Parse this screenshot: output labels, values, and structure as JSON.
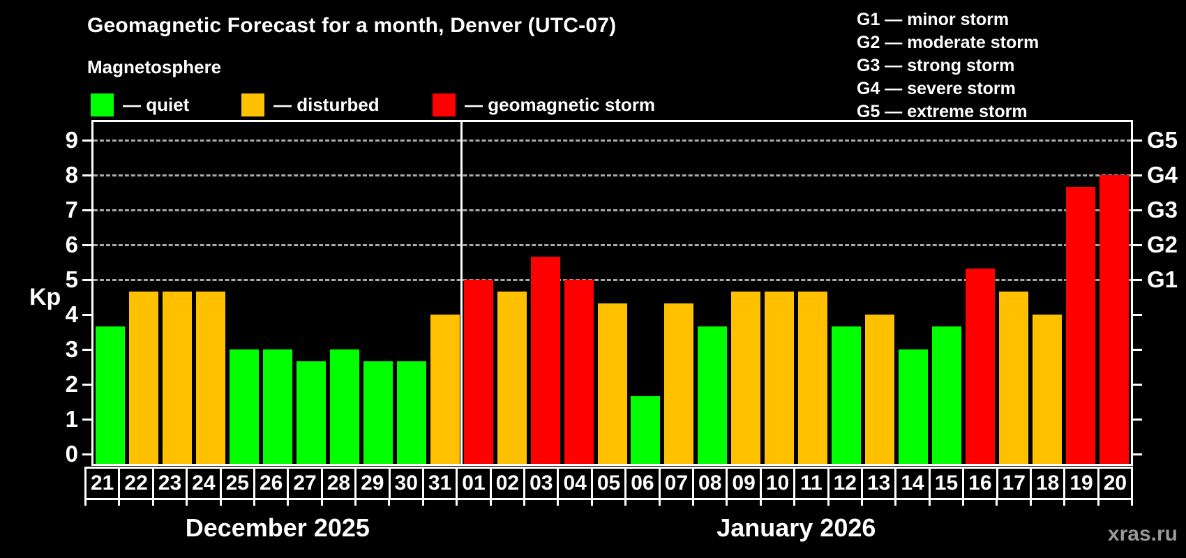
{
  "header": {
    "title": "Geomagnetic Forecast for a month, Denver (UTC-07)",
    "subtitle": "Magnetosphere",
    "watermark": "xras.ru"
  },
  "legend": {
    "items": [
      {
        "key": "quiet",
        "label": "— quiet",
        "color": "#00ff00"
      },
      {
        "key": "disturbed",
        "label": "— disturbed",
        "color": "#ffc000"
      },
      {
        "key": "storm",
        "label": "— geomagnetic storm",
        "color": "#ff0000"
      }
    ]
  },
  "g_legend": {
    "items": [
      {
        "label": "G1 — minor storm"
      },
      {
        "label": "G2 — moderate storm"
      },
      {
        "label": "G3 — strong storm"
      },
      {
        "label": "G4 — severe storm"
      },
      {
        "label": "G5 — extreme storm"
      }
    ]
  },
  "chart_data": {
    "type": "bar",
    "title": "Geomagnetic Forecast for a month, Denver (UTC-07)",
    "ylabel": "Kp",
    "ylim": [
      0,
      9
    ],
    "yticks": [
      "0",
      "1",
      "2",
      "3",
      "4",
      "5",
      "6",
      "7",
      "8",
      "9"
    ],
    "gridlines_at": [
      5,
      6,
      7,
      8,
      9
    ],
    "grid": "dashed horizontal at Kp 5-9 only",
    "legend_position": "top",
    "right_axis_labels": [
      {
        "kp": 5,
        "label": "G1"
      },
      {
        "kp": 6,
        "label": "G2"
      },
      {
        "kp": 7,
        "label": "G3"
      },
      {
        "kp": 8,
        "label": "G4"
      },
      {
        "kp": 9,
        "label": "G5"
      }
    ],
    "months": [
      {
        "label": "December 2025",
        "days": 11
      },
      {
        "label": "January 2026",
        "days": 20
      }
    ],
    "categories": [
      "21",
      "22",
      "23",
      "24",
      "25",
      "26",
      "27",
      "28",
      "29",
      "30",
      "31",
      "01",
      "02",
      "03",
      "04",
      "05",
      "06",
      "07",
      "08",
      "09",
      "10",
      "11",
      "12",
      "13",
      "14",
      "15",
      "16",
      "17",
      "18",
      "19",
      "20"
    ],
    "values": [
      3.67,
      4.67,
      4.67,
      4.67,
      3.0,
      3.0,
      2.67,
      3.0,
      2.67,
      2.67,
      4.0,
      5.0,
      4.67,
      5.67,
      5.0,
      4.33,
      1.67,
      4.33,
      3.67,
      4.67,
      4.67,
      4.67,
      3.67,
      4.0,
      3.0,
      3.67,
      5.33,
      4.67,
      4.0,
      7.67,
      8.0
    ],
    "statuses": [
      "quiet",
      "disturbed",
      "disturbed",
      "disturbed",
      "quiet",
      "quiet",
      "quiet",
      "quiet",
      "quiet",
      "quiet",
      "disturbed",
      "storm",
      "disturbed",
      "storm",
      "storm",
      "disturbed",
      "quiet",
      "disturbed",
      "quiet",
      "disturbed",
      "disturbed",
      "disturbed",
      "quiet",
      "disturbed",
      "quiet",
      "quiet",
      "storm",
      "disturbed",
      "disturbed",
      "storm",
      "storm"
    ],
    "colors": {
      "quiet": "#00ff00",
      "disturbed": "#ffc000",
      "storm": "#ff0000"
    }
  }
}
